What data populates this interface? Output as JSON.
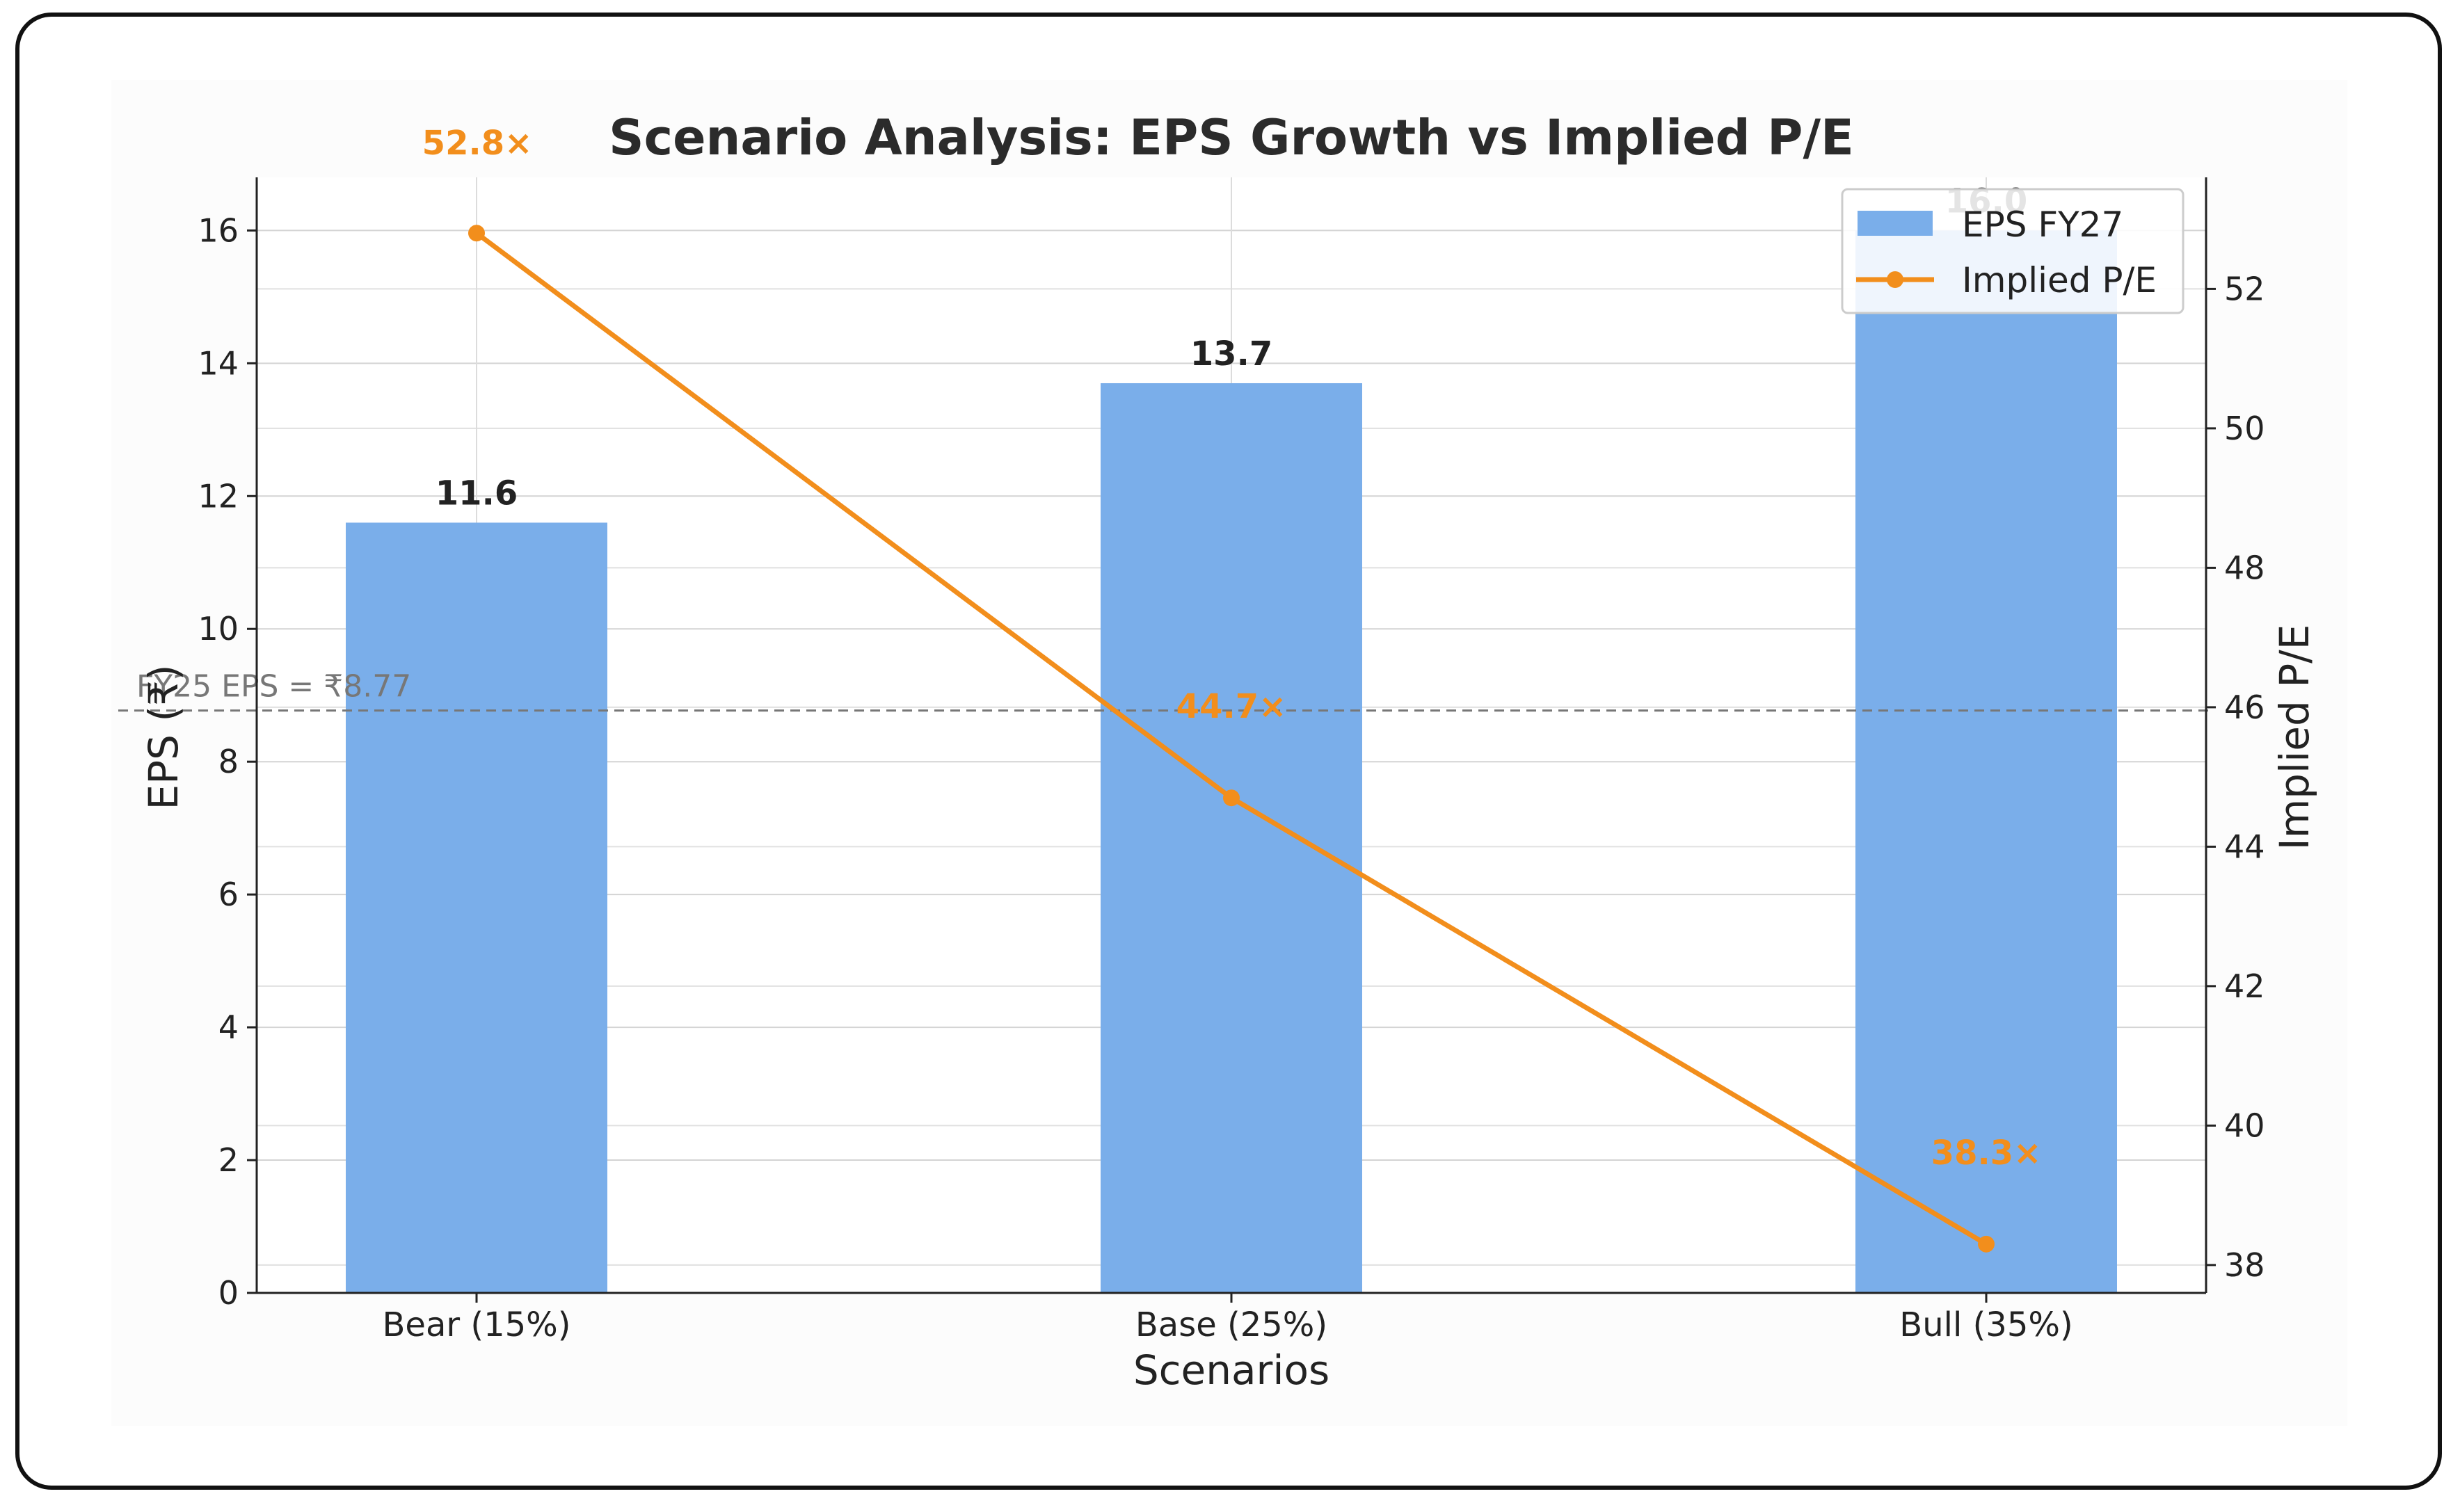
{
  "chart_data": {
    "type": "bar+line",
    "title": "Scenario Analysis: EPS Growth vs Implied P/E",
    "xlabel": "Scenarios",
    "ylabel": "EPS (₹)",
    "y2label": "Implied P/E",
    "categories": [
      "Bear (15%)",
      "Base (25%)",
      "Bull (35%)"
    ],
    "series": [
      {
        "name": "EPS FY27",
        "kind": "bar",
        "axis": "left",
        "values": [
          11.6,
          13.7,
          16.0
        ],
        "labels": [
          "11.6",
          "13.7",
          "16.0"
        ],
        "color": "#7aaeea"
      },
      {
        "name": "Implied P/E",
        "kind": "line",
        "axis": "right",
        "values": [
          52.8,
          44.7,
          38.3
        ],
        "labels": [
          "52.8×",
          "44.7×",
          "38.3×"
        ],
        "color": "#f28e1c"
      }
    ],
    "ylim": [
      0,
      16.8
    ],
    "y2lim": [
      37.6,
      53.6
    ],
    "yticks": [
      "0",
      "2",
      "4",
      "6",
      "8",
      "10",
      "12",
      "14",
      "16"
    ],
    "y2ticks": [
      "38",
      "40",
      "42",
      "44",
      "46",
      "48",
      "50",
      "52"
    ],
    "reference_line": {
      "value": 8.77,
      "label": "FY25 EPS = ₹8.77"
    },
    "legend": {
      "position": "top-right",
      "entries": [
        "EPS FY27",
        "Implied P/E"
      ]
    },
    "grid": true
  }
}
